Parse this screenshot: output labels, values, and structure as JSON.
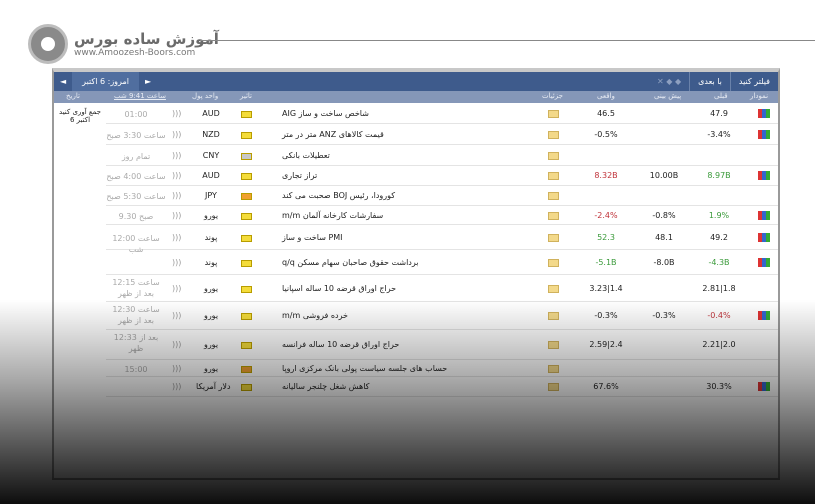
{
  "logo": {
    "name": "آموزش ساده بورس",
    "url": "www.Amoozesh-Boors.com"
  },
  "toolbar": {
    "prev": "◄",
    "today": "امروز: 6 اکتبر",
    "next": "►",
    "window_controls": "✕ ◆ ◆",
    "filter": "فیلتر کنید",
    "next_label": "با بعدی"
  },
  "columns": {
    "date": "تاریخ",
    "time": "ساعت 9:41 شب",
    "currency": "واحد پول",
    "importance": "تاثیر",
    "details": "جزئیات",
    "actual": "واقعی",
    "forecast": "پیش بینی",
    "previous": "قبلی",
    "chart": "نمودار"
  },
  "date_cell": "جمع آوری کنید اکتبر 6",
  "rows": [
    {
      "time": "01:00",
      "cur": "AUD",
      "imp": "#f4dc3a",
      "event": "AIG شاخص ساخت و ساز",
      "act": "46.5",
      "fc": "",
      "prev": "47.9",
      "act_c": "",
      "prev_c": "",
      "chart": true
    },
    {
      "time": "ساعت 3:30 صبح",
      "cur": "NZD",
      "imp": "#f4dc3a",
      "event": "متر در متر ANZ قیمت کالاهای",
      "act": "-0.5%",
      "fc": "",
      "prev": "-3.4%",
      "act_c": "",
      "prev_c": "",
      "chart": true
    },
    {
      "time": "تمام روز",
      "cur": "CNY",
      "imp": "#c8c8c8",
      "event": "تعطیلات بانکی",
      "act": "",
      "fc": "",
      "prev": "",
      "act_c": "",
      "prev_c": "",
      "chart": false
    },
    {
      "time": "ساعت 4:00 صبح",
      "cur": "AUD",
      "imp": "#f4dc3a",
      "event": "تراز تجاری",
      "act": "8.32B",
      "fc": "10.00B",
      "prev": "8.97B",
      "act_c": "red",
      "prev_c": "green",
      "chart": true
    },
    {
      "time": "ساعت 5:30 صبح",
      "cur": "JPY",
      "imp": "#f0a030",
      "event": "صحبت می کند BOJ کورودا، رئیس",
      "act": "",
      "fc": "",
      "prev": "",
      "act_c": "",
      "prev_c": "",
      "chart": false
    },
    {
      "time": "صبح 9.30",
      "cur": "یورو",
      "imp": "#f4dc3a",
      "event": "m/m سفارشات کارخانه آلمان",
      "act": "-2.4%",
      "fc": "-0.8%",
      "prev": "1.9%",
      "act_c": "red",
      "prev_c": "green",
      "chart": true
    },
    {
      "time": "ساعت 12:00 شب",
      "cur": "پوند",
      "imp": "#f4dc3a",
      "event": "ساخت و ساز PMI",
      "act": "52.3",
      "fc": "48.1",
      "prev": "49.2",
      "act_c": "green",
      "prev_c": "",
      "chart": true
    },
    {
      "time": "",
      "cur": "پوند",
      "imp": "#f4dc3a",
      "event": "q/q برداشت حقوق صاحبان سهام مسکن",
      "act": "-5.1B",
      "fc": "-8.0B",
      "prev": "-4.3B",
      "act_c": "green",
      "prev_c": "green",
      "chart": true
    },
    {
      "time": "ساعت 12:15 بعد از ظهر",
      "cur": "یورو",
      "imp": "#f4dc3a",
      "event": "حراج اوراق قرضه 10 ساله اسپانیا",
      "act": "3.23|1.4",
      "fc": "",
      "prev": "2.81|1.8",
      "act_c": "",
      "prev_c": "",
      "chart": false
    },
    {
      "time": "ساعت 12:30 بعد از ظهر",
      "cur": "یورو",
      "imp": "#f4dc3a",
      "event": "m/m خرده فروشی",
      "act": "-0.3%",
      "fc": "-0.3%",
      "prev": "-0.4%",
      "act_c": "",
      "prev_c": "red",
      "chart": true
    },
    {
      "time": "بعد از 12:33 ظهر",
      "cur": "یورو",
      "imp": "#f4dc3a",
      "event": "حراج اوراق قرضه 10 ساله فرانسه",
      "act": "2.59|2.4",
      "fc": "",
      "prev": "2.21|2.0",
      "act_c": "",
      "prev_c": "",
      "chart": false
    },
    {
      "time": "15:00",
      "cur": "یورو",
      "imp": "#f0a030",
      "event": "حساب های جلسه سیاست پولی بانک مرکزی اروپا",
      "act": "",
      "fc": "",
      "prev": "",
      "act_c": "",
      "prev_c": "",
      "chart": false
    },
    {
      "time": "",
      "cur": "دلار آمریکا",
      "imp": "#f4dc3a",
      "event": "کاهش شغل چلنجر سالیانه",
      "act": "67.6%",
      "fc": "",
      "prev": "30.3%",
      "act_c": "",
      "prev_c": "",
      "chart": true
    }
  ]
}
